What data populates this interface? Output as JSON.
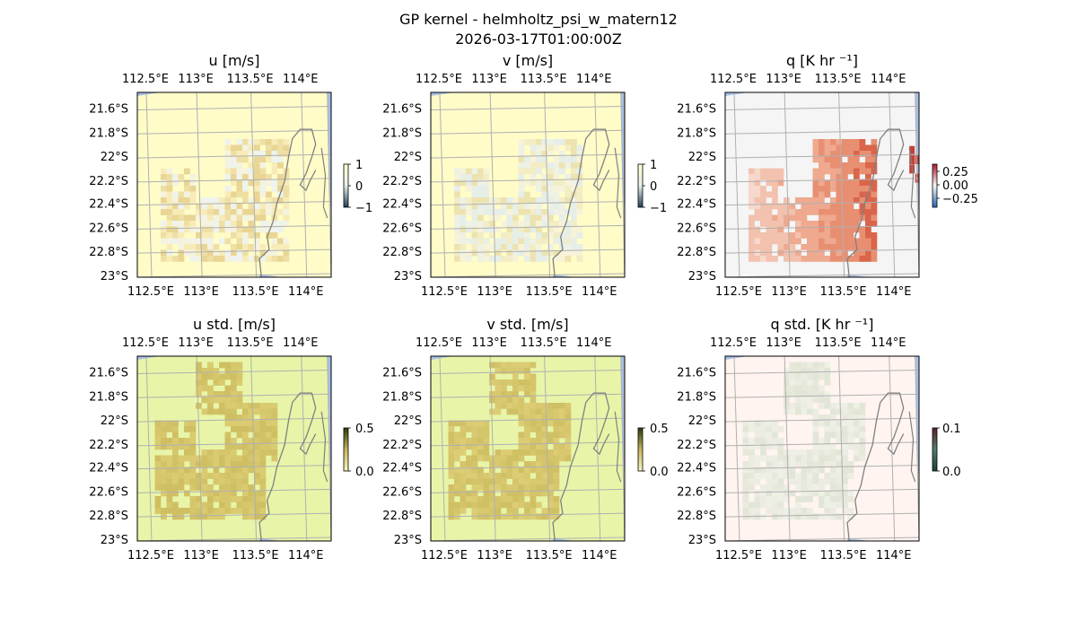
{
  "figure": {
    "title_line1": "GP kernel - helmholtz_psi_w_matern12",
    "title_line2": "2026-03-17T01:00:00Z"
  },
  "colors": {
    "ocean": "#a8bfe6",
    "grid": "#b0b0b0",
    "coast": "#808080"
  },
  "chart_data": [
    {
      "type": "heatmap",
      "title": "u [m/s]",
      "lon_ticks": [
        "112.5°E",
        "113°E",
        "113.5°E",
        "114°E"
      ],
      "lat_ticks": [
        "21.6°S",
        "21.8°S",
        "22°S",
        "22.2°S",
        "22.4°S",
        "22.6°S",
        "22.8°S",
        "23°S"
      ],
      "colorbar": {
        "ticks": [
          "1",
          "0",
          "−1"
        ],
        "range": [
          -1,
          1
        ]
      },
      "background": "#fffcc8",
      "cell_colors": [
        "#f7ecb7",
        "#efdfa4",
        "#e9d594",
        "#f5f3e0",
        "#eef3ee"
      ]
    },
    {
      "type": "heatmap",
      "title": "v [m/s]",
      "lon_ticks": [
        "112.5°E",
        "113°E",
        "113.5°E",
        "114°E"
      ],
      "lat_ticks": [
        "21.6°S",
        "21.8°S",
        "22°S",
        "22.2°S",
        "22.4°S",
        "22.6°S",
        "22.8°S",
        "23°S"
      ],
      "colorbar": {
        "ticks": [
          "1",
          "0",
          "−1"
        ],
        "range": [
          -1,
          1
        ]
      },
      "background": "#fffcc8",
      "cell_colors": [
        "#f3edc6",
        "#ece3b0",
        "#eef1e4",
        "#e6eee8",
        "#f7f3d8"
      ]
    },
    {
      "type": "heatmap",
      "title": "q [K hr ⁻¹]",
      "lon_ticks": [
        "112.5°E",
        "113°E",
        "113.5°E",
        "114°E"
      ],
      "lat_ticks": [
        "21.6°S",
        "21.8°S",
        "22°S",
        "22.2°S",
        "22.4°S",
        "22.6°S",
        "22.8°S",
        "23°S"
      ],
      "colorbar": {
        "ticks": [
          "0.25",
          "0.00",
          "−0.25"
        ],
        "range": [
          -0.35,
          0.35
        ]
      },
      "background": "#f5f5f5",
      "cell_colors": [
        "#f6d8cc",
        "#f2c2ae",
        "#eea98f",
        "#e88f72",
        "#d9654a"
      ]
    },
    {
      "type": "heatmap",
      "title": "u std. [m/s]",
      "lon_ticks": [
        "112.5°E",
        "113°E",
        "113.5°E",
        "114°E"
      ],
      "lat_ticks": [
        "21.6°S",
        "21.8°S",
        "22°S",
        "22.2°S",
        "22.4°S",
        "22.6°S",
        "22.8°S",
        "23°S"
      ],
      "colorbar": {
        "ticks": [
          "0.5",
          "0.0"
        ],
        "range": [
          0,
          0.5
        ]
      },
      "background": "#e8f5a8",
      "cell_colors": [
        "#d2c266",
        "#d6c66c",
        "#cfbf62",
        "#dacb70"
      ]
    },
    {
      "type": "heatmap",
      "title": "v std. [m/s]",
      "lon_ticks": [
        "112.5°E",
        "113°E",
        "113.5°E",
        "114°E"
      ],
      "lat_ticks": [
        "21.6°S",
        "21.8°S",
        "22°S",
        "22.2°S",
        "22.4°S",
        "22.6°S",
        "22.8°S",
        "23°S"
      ],
      "colorbar": {
        "ticks": [
          "0.5",
          "0.0"
        ],
        "range": [
          0,
          0.5
        ]
      },
      "background": "#e8f5a8",
      "cell_colors": [
        "#d4c46a",
        "#d8c870",
        "#d0c064",
        "#dccd74"
      ]
    },
    {
      "type": "heatmap",
      "title": "q std. [K hr ⁻¹]",
      "lon_ticks": [
        "112.5°E",
        "113°E",
        "113.5°E",
        "114°E"
      ],
      "lat_ticks": [
        "21.6°S",
        "21.8°S",
        "22°S",
        "22.2°S",
        "22.4°S",
        "22.6°S",
        "22.8°S",
        "23°S"
      ],
      "colorbar": {
        "ticks": [
          "0.1",
          "0.0"
        ],
        "range": [
          0,
          0.1
        ]
      },
      "background": "#fff4f0",
      "cell_colors": [
        "#ecece2",
        "#e6e8da",
        "#e2e6d6",
        "#eef0e6"
      ]
    }
  ]
}
